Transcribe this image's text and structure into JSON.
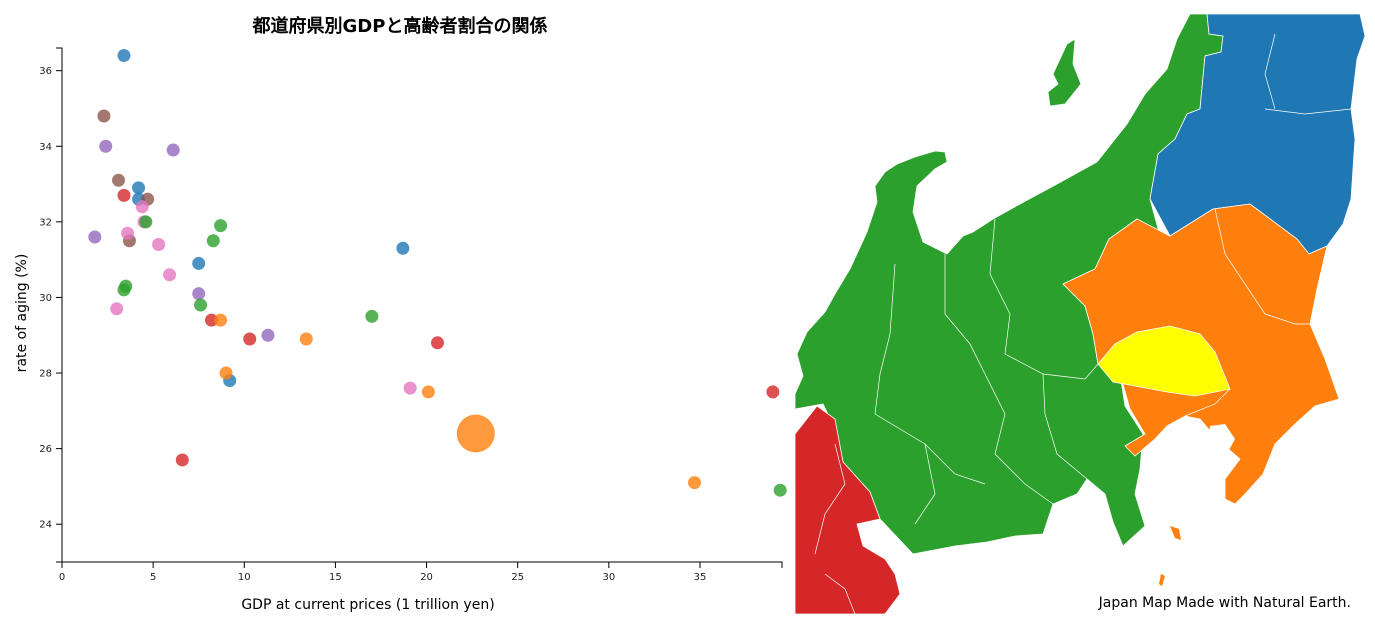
{
  "chart_data": {
    "type": "scatter",
    "title": "都道府県別GDPと高齢者割合の関係",
    "xlabel": "GDP at current prices (1 trillion yen)",
    "ylabel": "rate of aging (%)",
    "xlim": [
      0,
      39.5
    ],
    "ylim": [
      23,
      36.6
    ],
    "xticks": [
      0,
      5,
      10,
      15,
      20,
      25,
      30,
      35
    ],
    "yticks": [
      24,
      26,
      28,
      30,
      32,
      34,
      36
    ],
    "grid": false,
    "point_groups": {
      "blue": "#1f77b4",
      "orange": "#ff7f0e",
      "green": "#2ca02c",
      "red": "#d62728",
      "purple": "#9467bd",
      "brown": "#8c564b",
      "pink": "#e377c2"
    },
    "points": [
      {
        "x": 3.4,
        "y": 36.4,
        "group": "blue"
      },
      {
        "x": 4.2,
        "y": 32.9,
        "group": "blue"
      },
      {
        "x": 4.2,
        "y": 32.6,
        "group": "blue"
      },
      {
        "x": 7.5,
        "y": 30.9,
        "group": "blue"
      },
      {
        "x": 18.7,
        "y": 31.3,
        "group": "blue"
      },
      {
        "x": 9.2,
        "y": 27.8,
        "group": "blue"
      },
      {
        "x": 2.3,
        "y": 34.8,
        "group": "brown"
      },
      {
        "x": 3.1,
        "y": 33.1,
        "group": "brown"
      },
      {
        "x": 4.7,
        "y": 32.6,
        "group": "brown"
      },
      {
        "x": 3.7,
        "y": 31.5,
        "group": "brown"
      },
      {
        "x": 2.4,
        "y": 34.0,
        "group": "purple"
      },
      {
        "x": 6.1,
        "y": 33.9,
        "group": "purple"
      },
      {
        "x": 1.8,
        "y": 31.6,
        "group": "purple"
      },
      {
        "x": 7.5,
        "y": 30.1,
        "group": "purple"
      },
      {
        "x": 11.3,
        "y": 29.0,
        "group": "purple"
      },
      {
        "x": 3.4,
        "y": 32.7,
        "group": "red"
      },
      {
        "x": 8.2,
        "y": 29.4,
        "group": "red"
      },
      {
        "x": 10.3,
        "y": 28.9,
        "group": "red"
      },
      {
        "x": 20.6,
        "y": 28.8,
        "group": "red"
      },
      {
        "x": 6.6,
        "y": 25.7,
        "group": "red"
      },
      {
        "x": 39.0,
        "y": 27.5,
        "group": "red"
      },
      {
        "x": 4.4,
        "y": 32.4,
        "group": "pink"
      },
      {
        "x": 4.5,
        "y": 32.0,
        "group": "pink"
      },
      {
        "x": 3.6,
        "y": 31.7,
        "group": "pink"
      },
      {
        "x": 5.3,
        "y": 31.4,
        "group": "pink"
      },
      {
        "x": 5.9,
        "y": 30.6,
        "group": "pink"
      },
      {
        "x": 3.0,
        "y": 29.7,
        "group": "pink"
      },
      {
        "x": 19.1,
        "y": 27.6,
        "group": "pink"
      },
      {
        "x": 4.6,
        "y": 32.0,
        "group": "green"
      },
      {
        "x": 8.7,
        "y": 31.9,
        "group": "green"
      },
      {
        "x": 8.3,
        "y": 31.5,
        "group": "green"
      },
      {
        "x": 3.5,
        "y": 30.3,
        "group": "green"
      },
      {
        "x": 3.4,
        "y": 30.2,
        "group": "green"
      },
      {
        "x": 7.6,
        "y": 29.8,
        "group": "green"
      },
      {
        "x": 17.0,
        "y": 29.5,
        "group": "green"
      },
      {
        "x": 39.4,
        "y": 24.9,
        "group": "green"
      },
      {
        "x": 8.7,
        "y": 29.4,
        "group": "orange"
      },
      {
        "x": 13.4,
        "y": 28.9,
        "group": "orange"
      },
      {
        "x": 9.0,
        "y": 28.0,
        "group": "orange"
      },
      {
        "x": 20.1,
        "y": 27.5,
        "group": "orange"
      },
      {
        "x": 34.7,
        "y": 25.1,
        "group": "orange"
      },
      {
        "x": 22.7,
        "y": 26.4,
        "group": "orange",
        "highlight": true
      }
    ]
  },
  "map": {
    "credit": "Japan Map Made with Natural Earth.",
    "region_colors": {
      "tohoku": "#1f77b4",
      "kanto": "#ff7f0e",
      "selected": "#ffff00",
      "chubu": "#2ca02c",
      "kinki": "#d62728",
      "border": "#ffffff"
    }
  }
}
